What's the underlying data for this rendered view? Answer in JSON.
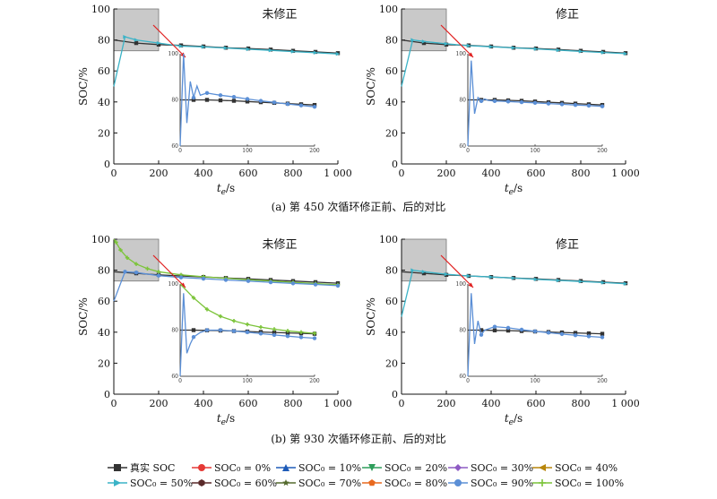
{
  "captions": {
    "a": "(a) 第 450 次循环修正前、后的对比",
    "b": "(b) 第 930 次循环修正前、后的对比"
  },
  "legend": [
    {
      "label": "真实 SOC",
      "color": "#333333",
      "marker": "square"
    },
    {
      "label": "SOC₀ = 0%",
      "color": "#e53935",
      "marker": "circle"
    },
    {
      "label": "SOC₀ = 10%",
      "color": "#1e5bb8",
      "marker": "triangle-up"
    },
    {
      "label": "SOC₀ = 20%",
      "color": "#2e9e5b",
      "marker": "triangle-down"
    },
    {
      "label": "SOC₀ = 30%",
      "color": "#8e5bc4",
      "marker": "diamond"
    },
    {
      "label": "SOC₀ = 40%",
      "color": "#b8860b",
      "marker": "triangle-left"
    },
    {
      "label": "SOC₀ = 50%",
      "color": "#3bb3c7",
      "marker": "triangle-right"
    },
    {
      "label": "SOC₀ = 60%",
      "color": "#5a2a2a",
      "marker": "hexagon"
    },
    {
      "label": "SOC₀ = 70%",
      "color": "#556b2f",
      "marker": "star"
    },
    {
      "label": "SOC₀ = 80%",
      "color": "#e8691e",
      "marker": "pentagon"
    },
    {
      "label": "SOC₀ = 90%",
      "color": "#5b8fd6",
      "marker": "circle-filled"
    },
    {
      "label": "SOC₀ = 100%",
      "color": "#7cc43a",
      "marker": "plus"
    }
  ],
  "chart_data": [
    {
      "type": "line",
      "id": "a-left",
      "title": "未修正",
      "xlabel": "t_e/s",
      "ylabel": "SOC/%",
      "xlim": [
        0,
        1000
      ],
      "ylim": [
        0,
        100
      ],
      "xticks": [
        "0",
        "200",
        "400",
        "600",
        "800",
        "1 000"
      ],
      "yticks": [
        "0",
        "20",
        "40",
        "60",
        "80",
        "100"
      ],
      "zoom_box": {
        "x": [
          0,
          200
        ],
        "y": [
          73,
          100
        ]
      },
      "series": [
        {
          "name": "真实 SOC",
          "x": [
            0,
            100,
            200,
            300,
            400,
            500,
            600,
            700,
            800,
            900,
            1000
          ],
          "y": [
            80,
            78,
            77,
            76.5,
            75.8,
            75,
            74.5,
            73.8,
            73,
            72.3,
            71.5
          ]
        },
        {
          "name": "SOC₀ = 50%",
          "x": [
            0,
            50,
            100,
            200,
            300,
            400,
            500,
            600,
            700,
            800,
            900,
            1000
          ],
          "y": [
            50,
            82,
            80,
            78,
            76,
            75.5,
            74.8,
            74,
            73.3,
            72.5,
            71.8,
            71
          ]
        }
      ],
      "inset": {
        "xlim": [
          0,
          200
        ],
        "ylim": [
          60,
          100
        ],
        "xticks": [
          "0",
          "100",
          "200"
        ],
        "yticks": [
          "60",
          "80",
          "100"
        ],
        "series": [
          {
            "name": "真实 SOC",
            "x": [
              0,
              20,
              40,
              60,
              80,
              100,
              120,
              140,
              160,
              180,
              200
            ],
            "y": [
              80,
              80,
              80,
              79.8,
              79.6,
              79.3,
              79.0,
              78.7,
              78.4,
              78.1,
              77.8
            ]
          },
          {
            "name": "SOC₀ = 90%",
            "x": [
              0,
              5,
              10,
              15,
              20,
              25,
              30,
              40,
              50,
              60,
              80,
              100,
              120,
              140,
              160,
              180,
              200
            ],
            "y": [
              60,
              100,
              70,
              88,
              81,
              86,
              82,
              83,
              82.5,
              82,
              81.3,
              80.4,
              79.6,
              78.9,
              78.2,
              77.6,
              77.0
            ]
          }
        ]
      }
    },
    {
      "type": "line",
      "id": "a-right",
      "title": "修正",
      "xlabel": "t_e/s",
      "ylabel": "SOC/%",
      "xlim": [
        0,
        1000
      ],
      "ylim": [
        0,
        100
      ],
      "xticks": [
        "0",
        "200",
        "400",
        "600",
        "800",
        "1 000"
      ],
      "yticks": [
        "0",
        "20",
        "40",
        "60",
        "80",
        "100"
      ],
      "zoom_box": {
        "x": [
          0,
          200
        ],
        "y": [
          73,
          100
        ]
      },
      "series": [
        {
          "name": "真实 SOC",
          "x": [
            0,
            100,
            200,
            300,
            400,
            500,
            600,
            700,
            800,
            900,
            1000
          ],
          "y": [
            80,
            78,
            77,
            76.5,
            75.8,
            75,
            74.5,
            73.8,
            73,
            72.3,
            71.5
          ]
        },
        {
          "name": "SOC₀ = 50%",
          "x": [
            0,
            50,
            100,
            200,
            300,
            400,
            500,
            600,
            700,
            800,
            900,
            1000
          ],
          "y": [
            50,
            80,
            79,
            77.5,
            76.3,
            75.6,
            74.9,
            74.2,
            73.4,
            72.6,
            71.9,
            71.2
          ]
        }
      ],
      "inset": {
        "xlim": [
          0,
          200
        ],
        "ylim": [
          60,
          100
        ],
        "xticks": [
          "0",
          "100",
          "200"
        ],
        "yticks": [
          "60",
          "80",
          "100"
        ],
        "series": [
          {
            "name": "真实 SOC",
            "x": [
              0,
              20,
              40,
              60,
              80,
              100,
              120,
              140,
              160,
              180,
              200
            ],
            "y": [
              80,
              80,
              80,
              79.8,
              79.6,
              79.3,
              79.0,
              78.7,
              78.4,
              78.1,
              77.8
            ]
          },
          {
            "name": "SOC₀ = 90%",
            "x": [
              0,
              5,
              10,
              15,
              20,
              25,
              30,
              40,
              50,
              60,
              80,
              100,
              120,
              140,
              160,
              180,
              200
            ],
            "y": [
              60,
              97,
              74,
              81,
              79.5,
              80.4,
              79.8,
              79.5,
              79.4,
              79.3,
              79.0,
              78.7,
              78.4,
              78.1,
              77.8,
              77.5,
              77.2
            ]
          }
        ]
      }
    },
    {
      "type": "line",
      "id": "b-left",
      "title": "未修正",
      "xlabel": "t_e/s",
      "ylabel": "SOC/%",
      "xlim": [
        0,
        1000
      ],
      "ylim": [
        0,
        100
      ],
      "xticks": [
        "0",
        "200",
        "400",
        "600",
        "800",
        "1 000"
      ],
      "yticks": [
        "0",
        "20",
        "40",
        "60",
        "80",
        "100"
      ],
      "zoom_box": {
        "x": [
          0,
          200
        ],
        "y": [
          73,
          100
        ]
      },
      "series": [
        {
          "name": "真实 SOC",
          "x": [
            0,
            100,
            200,
            300,
            400,
            500,
            600,
            700,
            800,
            900,
            1000
          ],
          "y": [
            79,
            78,
            77,
            76.3,
            75.6,
            75,
            74.4,
            73.7,
            73,
            72.3,
            71.6
          ]
        },
        {
          "name": "SOC₀ = 100%",
          "x": [
            0,
            10,
            30,
            60,
            100,
            150,
            200,
            300,
            400,
            500,
            600,
            700,
            800,
            900,
            1000
          ],
          "y": [
            100,
            98,
            93,
            88,
            84,
            81,
            79,
            77,
            75.8,
            74.8,
            73.8,
            73,
            72.2,
            71.4,
            70.6
          ]
        },
        {
          "name": "SOC₀ = 90%",
          "x": [
            0,
            50,
            100,
            200,
            300,
            400,
            500,
            600,
            700,
            800,
            900,
            1000
          ],
          "y": [
            60,
            79,
            78.5,
            76.5,
            75.3,
            74.5,
            73.7,
            73,
            72.2,
            71.5,
            70.8,
            70
          ]
        }
      ],
      "inset": {
        "xlim": [
          0,
          200
        ],
        "ylim": [
          60,
          100
        ],
        "xticks": [
          "0",
          "100",
          "200"
        ],
        "yticks": [
          "60",
          "80",
          "100"
        ],
        "series": [
          {
            "name": "真实 SOC",
            "x": [
              0,
              20,
              40,
              60,
              80,
              100,
              120,
              140,
              160,
              180,
              200
            ],
            "y": [
              80,
              80,
              79.9,
              79.8,
              79.6,
              79.4,
              79.2,
              79.0,
              78.8,
              78.6,
              78.4
            ]
          },
          {
            "name": "SOC₀ = 100%",
            "x": [
              0,
              10,
              20,
              30,
              40,
              60,
              80,
              100,
              120,
              140,
              160,
              180,
              200
            ],
            "y": [
              100,
              97,
              94,
              91.5,
              89,
              86,
              84,
              82.5,
              81.3,
              80.4,
              79.7,
              79.1,
              78.6
            ]
          },
          {
            "name": "SOC₀ = 90%",
            "x": [
              0,
              5,
              10,
              15,
              20,
              30,
              40,
              60,
              80,
              100,
              120,
              140,
              160,
              180,
              200
            ],
            "y": [
              60,
              96,
              70,
              74,
              77,
              79,
              80,
              80,
              79.6,
              79.1,
              78.5,
              77.9,
              77.4,
              76.9,
              76.5
            ]
          }
        ]
      }
    },
    {
      "type": "line",
      "id": "b-right",
      "title": "修正",
      "xlabel": "t_e/s",
      "ylabel": "SOC/%",
      "xlim": [
        0,
        1000
      ],
      "ylim": [
        0,
        100
      ],
      "xticks": [
        "0",
        "200",
        "400",
        "600",
        "800",
        "1 000"
      ],
      "yticks": [
        "0",
        "20",
        "40",
        "60",
        "80",
        "100"
      ],
      "zoom_box": {
        "x": [
          0,
          200
        ],
        "y": [
          73,
          100
        ]
      },
      "series": [
        {
          "name": "真实 SOC",
          "x": [
            0,
            100,
            200,
            300,
            400,
            500,
            600,
            700,
            800,
            900,
            1000
          ],
          "y": [
            79,
            78,
            77,
            76.3,
            75.6,
            75,
            74.4,
            73.7,
            73,
            72.3,
            71.6
          ]
        },
        {
          "name": "SOC₀ = 50%",
          "x": [
            0,
            50,
            100,
            200,
            300,
            400,
            500,
            600,
            700,
            800,
            900,
            1000
          ],
          "y": [
            50,
            80,
            79,
            77.4,
            76.3,
            75.6,
            74.9,
            74.1,
            73.4,
            72.7,
            72,
            71.3
          ]
        }
      ],
      "inset": {
        "xlim": [
          0,
          200
        ],
        "ylim": [
          60,
          100
        ],
        "xticks": [
          "0",
          "100",
          "200"
        ],
        "yticks": [
          "60",
          "80",
          "100"
        ],
        "series": [
          {
            "name": "真实 SOC",
            "x": [
              0,
              20,
              40,
              60,
              80,
              100,
              120,
              140,
              160,
              180,
              200
            ],
            "y": [
              80,
              80,
              79.9,
              79.8,
              79.6,
              79.4,
              79.2,
              79.0,
              78.8,
              78.6,
              78.4
            ]
          },
          {
            "name": "SOC₀ = 90%",
            "x": [
              0,
              5,
              10,
              15,
              20,
              25,
              30,
              40,
              60,
              80,
              100,
              120,
              140,
              160,
              180,
              200
            ],
            "y": [
              60,
              96,
              74,
              84,
              78,
              80,
              80.5,
              81.5,
              81,
              80.2,
              79.5,
              78.9,
              78.3,
              77.8,
              77.3,
              76.9
            ]
          }
        ]
      }
    }
  ]
}
